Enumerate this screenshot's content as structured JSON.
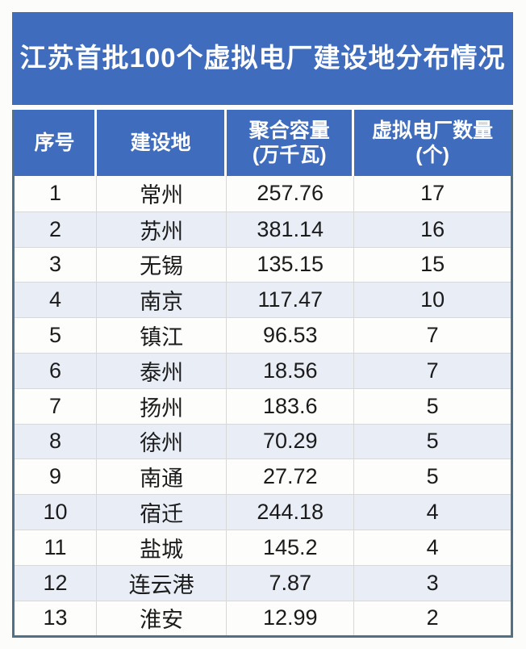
{
  "title": "江苏首批100个虚拟电厂建设地分布情况",
  "colors": {
    "header_blue": "#3F6CBD",
    "alt_row": "#E9EDF6",
    "row_white": "#FDFDFC",
    "grid_line": "#D8D8D8",
    "outer_border": "#4F7086",
    "title_text": "#FFFFFF",
    "body_text": "#1B1B1B"
  },
  "table": {
    "headers": [
      {
        "label": "序号",
        "sub": ""
      },
      {
        "label": "建设地",
        "sub": ""
      },
      {
        "label": "聚合容量",
        "sub": "(万千瓦)"
      },
      {
        "label": "虚拟电厂数量",
        "sub": "(个)"
      }
    ],
    "rows": [
      {
        "seq": "1",
        "city": "常州",
        "capacity": "257.76",
        "count": "17"
      },
      {
        "seq": "2",
        "city": "苏州",
        "capacity": "381.14",
        "count": "16"
      },
      {
        "seq": "3",
        "city": "无锡",
        "capacity": "135.15",
        "count": "15"
      },
      {
        "seq": "4",
        "city": "南京",
        "capacity": "117.47",
        "count": "10"
      },
      {
        "seq": "5",
        "city": "镇江",
        "capacity": "96.53",
        "count": "7"
      },
      {
        "seq": "6",
        "city": "泰州",
        "capacity": "18.56",
        "count": "7"
      },
      {
        "seq": "7",
        "city": "扬州",
        "capacity": "183.6",
        "count": "5"
      },
      {
        "seq": "8",
        "city": "徐州",
        "capacity": "70.29",
        "count": "5"
      },
      {
        "seq": "9",
        "city": "南通",
        "capacity": "27.72",
        "count": "5"
      },
      {
        "seq": "10",
        "city": "宿迁",
        "capacity": "244.18",
        "count": "4"
      },
      {
        "seq": "11",
        "city": "盐城",
        "capacity": "145.2",
        "count": "4"
      },
      {
        "seq": "12",
        "city": "连云港",
        "capacity": "7.87",
        "count": "3"
      },
      {
        "seq": "13",
        "city": "淮安",
        "capacity": "12.99",
        "count": "2"
      }
    ]
  },
  "chart_data": {
    "type": "table",
    "title": "江苏首批100个虚拟电厂建设地分布情况",
    "columns": [
      "序号",
      "建设地",
      "聚合容量(万千瓦)",
      "虚拟电厂数量(个)"
    ],
    "rows": [
      [
        1,
        "常州",
        257.76,
        17
      ],
      [
        2,
        "苏州",
        381.14,
        16
      ],
      [
        3,
        "无锡",
        135.15,
        15
      ],
      [
        4,
        "南京",
        117.47,
        10
      ],
      [
        5,
        "镇江",
        96.53,
        7
      ],
      [
        6,
        "泰州",
        18.56,
        7
      ],
      [
        7,
        "扬州",
        183.6,
        5
      ],
      [
        8,
        "徐州",
        70.29,
        5
      ],
      [
        9,
        "南通",
        27.72,
        5
      ],
      [
        10,
        "宿迁",
        244.18,
        4
      ],
      [
        11,
        "盐城",
        145.2,
        4
      ],
      [
        12,
        "连云港",
        7.87,
        3
      ],
      [
        13,
        "淮安",
        12.99,
        2
      ]
    ]
  }
}
